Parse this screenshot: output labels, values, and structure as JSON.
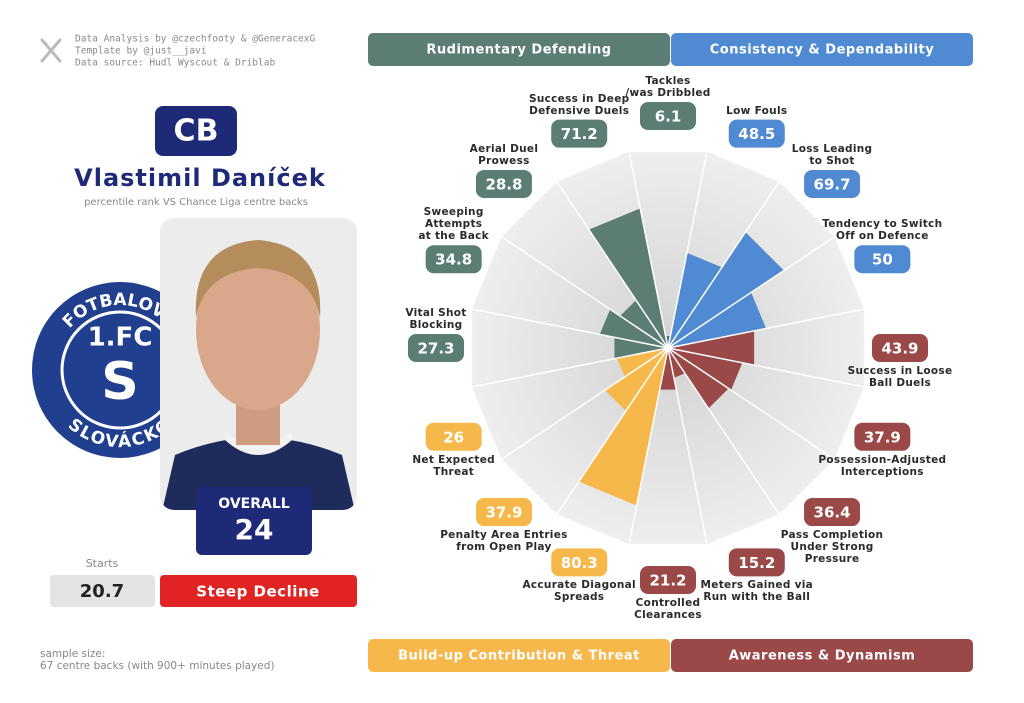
{
  "header": {
    "credits": [
      "Data Analysis by @czechfooty & @GeneracexG",
      "Template by @just__javi",
      "Data source: Hudl Wyscout & Driblab"
    ]
  },
  "player": {
    "position": "CB",
    "name": "Vlastimil Daníček",
    "subtitle": "percentile rank VS Chance Liga centre backs",
    "overall_label": "OVERALL",
    "overall": 24,
    "starts_label": "Starts",
    "starts": 20.7,
    "trend": "Steep Decline"
  },
  "crest": {
    "top": "FOTBALOVÝ",
    "center": "1.FC",
    "letter": "S",
    "bottom": "SLOVÁCKO"
  },
  "footer": {
    "sample_size": [
      "sample size:",
      "67 centre backs (with 900+ minutes played)"
    ]
  },
  "chart_data": {
    "type": "pizza",
    "ylim": [
      0,
      100
    ],
    "series": [
      {
        "name": "Rudimentary Defending",
        "color": "#5b7d73",
        "categories": [
          "Vital Shot\nBlocking",
          "Sweeping\nAttempts\nat the Back",
          "Aerial Duel\nProwess",
          "Success in Deep\nDefensive Duels",
          "Tackles\n/was Dribbled"
        ],
        "values": [
          27.3,
          34.8,
          28.8,
          71.2,
          6.1
        ]
      },
      {
        "name": "Consistency & Dependability",
        "color": "#4f8ad3",
        "categories": [
          "Low Fouls",
          "Loss Leading\nto Shot",
          "Tendency to Switch\nOff on Defence"
        ],
        "values": [
          48.5,
          69.7,
          50
        ]
      },
      {
        "name": "Awareness & Dynamism",
        "color": "#9a4848",
        "categories": [
          "Success in Loose\nBall Duels",
          "Possession-Adjusted\nInterceptions",
          "Pass Completion\nUnder Strong Pressure",
          "Meters Gained via\nRun with the Ball",
          "Controlled\nClearances"
        ],
        "values": [
          43.9,
          37.9,
          36.4,
          15.2,
          21.2
        ]
      },
      {
        "name": "Build-up Contribution & Threat",
        "color": "#f7b84b",
        "categories": [
          "Accurate Diagonal\nSpreads",
          "Penalty Area Entries\nfrom Open Play",
          "Net Expected\nThreat"
        ],
        "values": [
          80.3,
          37.9,
          26
        ]
      }
    ]
  }
}
